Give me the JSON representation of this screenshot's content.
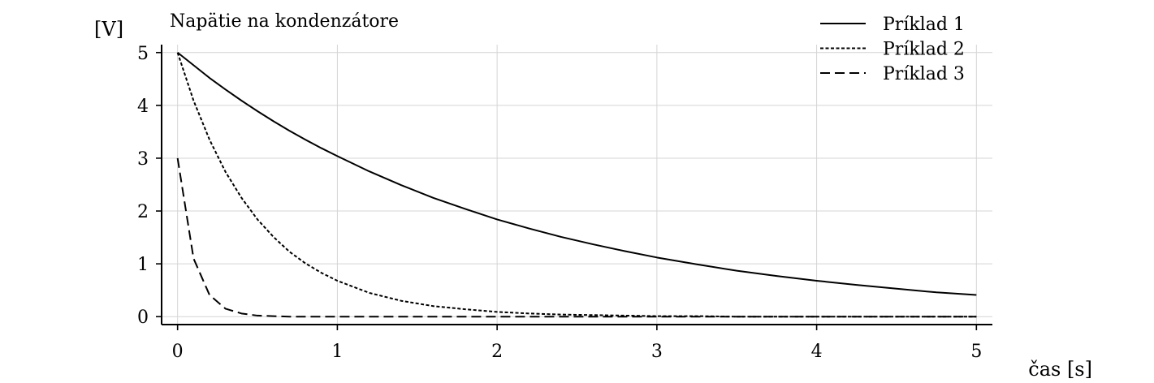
{
  "chart_data": {
    "type": "line",
    "title": "Napätie na kondenzátore",
    "xlabel": "čas [s]",
    "ylabel": "[V]",
    "xlim": [
      -0.1,
      5.1
    ],
    "ylim": [
      -0.15,
      5.15
    ],
    "xticks": [
      0,
      1,
      2,
      3,
      4,
      5
    ],
    "yticks": [
      0,
      1,
      2,
      3,
      4,
      5
    ],
    "grid": true,
    "legend_position": "top-right",
    "x": [
      0,
      0.1,
      0.2,
      0.3,
      0.4,
      0.5,
      0.6,
      0.7,
      0.8,
      0.9,
      1.0,
      1.2,
      1.4,
      1.6,
      1.8,
      2.0,
      2.2,
      2.4,
      2.6,
      2.8,
      3.0,
      3.25,
      3.5,
      3.75,
      4.0,
      4.25,
      4.5,
      4.75,
      5.0
    ],
    "series": [
      {
        "name": "Príklad 1",
        "style": "solid",
        "color": "#000000",
        "values": [
          5.0,
          4.76,
          4.52,
          4.3,
          4.09,
          3.89,
          3.7,
          3.52,
          3.35,
          3.19,
          3.04,
          2.75,
          2.49,
          2.25,
          2.04,
          1.84,
          1.67,
          1.51,
          1.37,
          1.24,
          1.12,
          0.99,
          0.87,
          0.77,
          0.68,
          0.6,
          0.53,
          0.46,
          0.41
        ]
      },
      {
        "name": "Príklad 2",
        "style": "dotted",
        "color": "#000000",
        "values": [
          5.0,
          4.09,
          3.35,
          2.74,
          2.25,
          1.84,
          1.51,
          1.23,
          1.01,
          0.83,
          0.68,
          0.45,
          0.3,
          0.2,
          0.14,
          0.09,
          0.06,
          0.04,
          0.03,
          0.02,
          0.01,
          0.01,
          0.0,
          0.0,
          0.0,
          0.0,
          0.0,
          0.0,
          0.0
        ]
      },
      {
        "name": "Príklad 3",
        "style": "dashed",
        "color": "#000000",
        "values": [
          3.0,
          1.1,
          0.41,
          0.15,
          0.06,
          0.02,
          0.01,
          0.0,
          0.0,
          0.0,
          0.0,
          0.0,
          0.0,
          0.0,
          0.0,
          0.0,
          0.0,
          0.0,
          0.0,
          0.0,
          0.0,
          0.0,
          0.0,
          0.0,
          0.0,
          0.0,
          0.0,
          0.0,
          0.0
        ]
      }
    ]
  }
}
